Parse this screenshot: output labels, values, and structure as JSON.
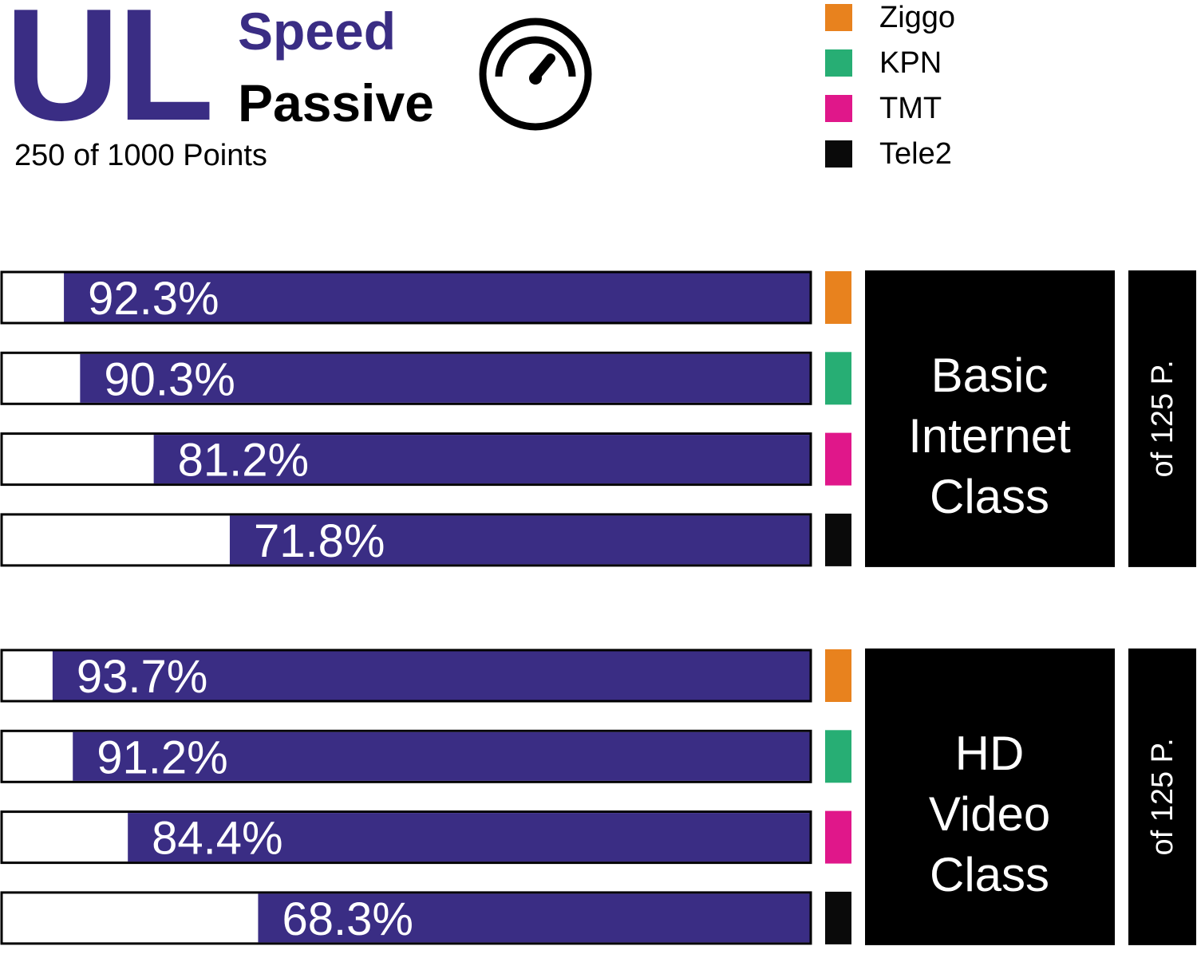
{
  "header": {
    "title": "UL",
    "subtitle_1": "Speed",
    "subtitle_2": "Passive",
    "points": "250 of 1000 Points"
  },
  "icons": {
    "gauge": "speedometer-icon"
  },
  "colors": {
    "bar": "#3a2d84",
    "operators": {
      "Ziggo": "#e8821e",
      "KPN": "#27ae74",
      "TMT": "#e0178a",
      "Tele2": "#0a0a0a"
    },
    "class_box": "#000000"
  },
  "legend": [
    {
      "label": "Ziggo",
      "color": "#e8821e"
    },
    {
      "label": "KPN",
      "color": "#27ae74"
    },
    {
      "label": "TMT",
      "color": "#e0178a"
    },
    {
      "label": "Tele2",
      "color": "#0a0a0a"
    }
  ],
  "chart_data": [
    {
      "type": "bar",
      "orientation": "horizontal",
      "categories": [
        "Ziggo",
        "KPN",
        "TMT",
        "Tele2"
      ],
      "values": [
        92.3,
        90.3,
        81.2,
        71.8
      ],
      "value_labels": [
        "92.3%",
        "90.3%",
        "81.2%",
        "71.8%"
      ],
      "xlim": [
        0,
        100
      ],
      "class_label": [
        "Basic",
        "Internet",
        "Class"
      ],
      "points_label": "of 125 P."
    },
    {
      "type": "bar",
      "orientation": "horizontal",
      "categories": [
        "Ziggo",
        "KPN",
        "TMT",
        "Tele2"
      ],
      "values": [
        93.7,
        91.2,
        84.4,
        68.3
      ],
      "value_labels": [
        "93.7%",
        "91.2%",
        "84.4%",
        "68.3%"
      ],
      "xlim": [
        0,
        100
      ],
      "class_label": [
        "HD",
        "Video",
        "Class"
      ],
      "points_label": "of 125 P."
    }
  ]
}
